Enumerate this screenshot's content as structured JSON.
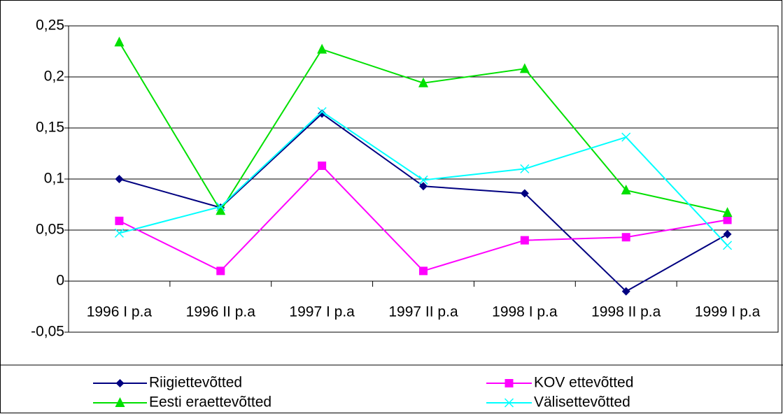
{
  "chart_data": {
    "type": "line",
    "categories": [
      "1996 I p.a",
      "1996 II p.a",
      "1997 I p.a",
      "1997 II p.a",
      "1998 I p.a",
      "1998 II p.a",
      "1999 I p.a"
    ],
    "series": [
      {
        "name": "Riigiettevõtted",
        "color": "#000080",
        "marker": "diamond",
        "values": [
          0.1,
          0.072,
          0.164,
          0.093,
          0.086,
          -0.01,
          0.046
        ]
      },
      {
        "name": "KOV ettevõtted",
        "color": "#ff00ff",
        "marker": "square",
        "values": [
          0.059,
          0.01,
          0.113,
          0.01,
          0.04,
          0.043,
          0.06
        ]
      },
      {
        "name": "Eesti eraettevõtted",
        "color": "#00e000",
        "marker": "triangle",
        "values": [
          0.234,
          0.069,
          0.227,
          0.194,
          0.208,
          0.089,
          0.067
        ]
      },
      {
        "name": "Välisettevõtted",
        "color": "#00ffff",
        "marker": "x",
        "values": [
          0.047,
          0.073,
          0.166,
          0.099,
          0.11,
          0.141,
          0.035
        ]
      }
    ],
    "ylim": [
      -0.05,
      0.25
    ],
    "yticks": [
      {
        "value": -0.05,
        "label": "-0,05"
      },
      0,
      {
        "value": 0.05,
        "label": "0,05"
      },
      {
        "value": 0.1,
        "label": "0,1"
      },
      {
        "value": 0.15,
        "label": "0,15"
      },
      {
        "value": 0.2,
        "label": "0,2"
      },
      {
        "value": 0.25,
        "label": "0,25"
      }
    ],
    "grid": true,
    "legend": "bottom"
  }
}
